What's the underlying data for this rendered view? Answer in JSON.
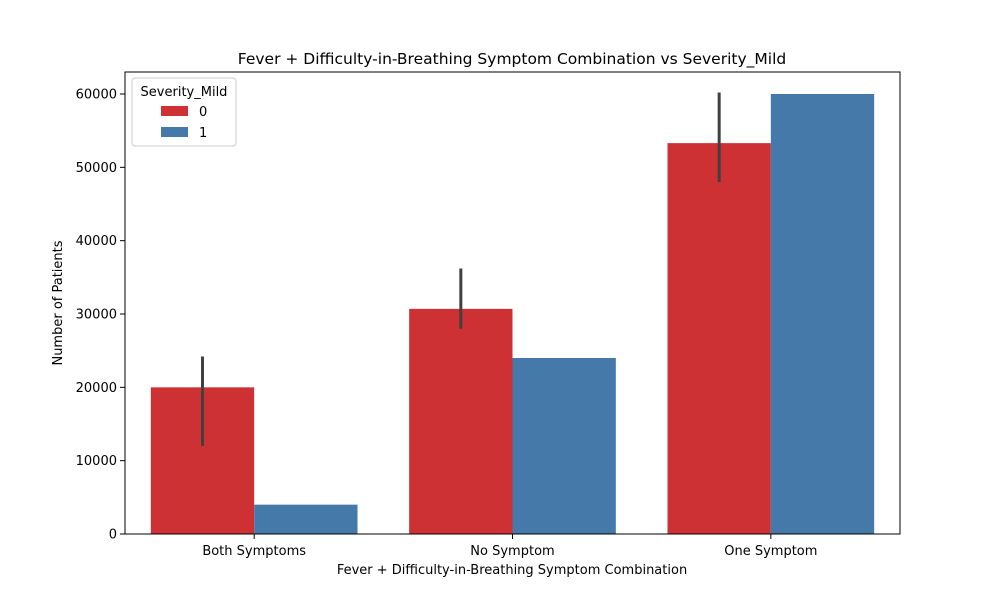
{
  "chart_data": {
    "type": "bar",
    "title": "Fever + Difficulty-in-Breathing Symptom Combination vs Severity_Mild",
    "xlabel": "Fever + Difficulty-in-Breathing Symptom Combination",
    "ylabel": "Number of Patients",
    "categories": [
      "Both Symptoms",
      "No Symptom",
      "One Symptom"
    ],
    "ylim": [
      0,
      63000
    ],
    "yticks": [
      0,
      10000,
      20000,
      30000,
      40000,
      50000,
      60000
    ],
    "ytick_labels": [
      "0",
      "10000",
      "20000",
      "30000",
      "40000",
      "50000",
      "60000"
    ],
    "grid": false,
    "legend": {
      "title": "Severity_Mild",
      "placement": "top-left"
    },
    "series": [
      {
        "name": "0",
        "color": "#cd3133",
        "values": [
          20000,
          30700,
          53300
        ],
        "error_low": [
          12000,
          28000,
          48000
        ],
        "error_high": [
          24200,
          36200,
          60200
        ]
      },
      {
        "name": "1",
        "color": "#4479a9",
        "values": [
          4000,
          24000,
          60000
        ],
        "error_low": [
          null,
          null,
          null
        ],
        "error_high": [
          null,
          null,
          null
        ]
      }
    ],
    "errorbar_color": "#404040"
  }
}
